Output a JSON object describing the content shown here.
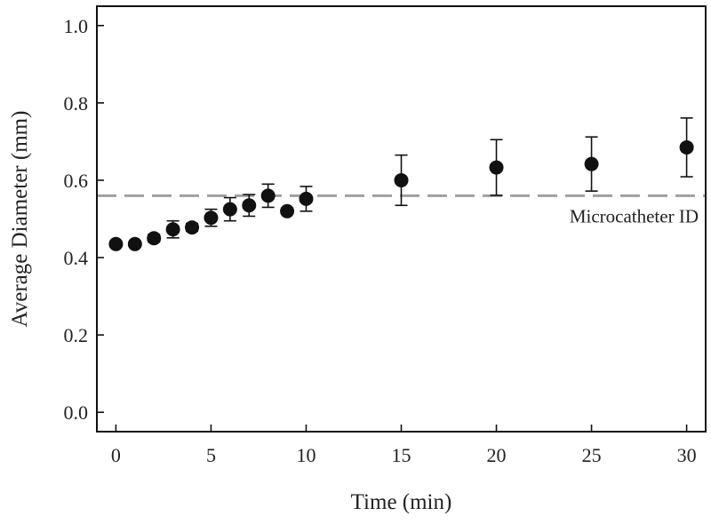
{
  "chart_data": {
    "type": "scatter",
    "title": "",
    "xlabel": "Time (min)",
    "ylabel": "Average Diameter (mm)",
    "xlim": [
      -1,
      31
    ],
    "ylim": [
      -0.05,
      1.05
    ],
    "xticks": [
      0,
      5,
      10,
      15,
      20,
      25,
      30
    ],
    "yticks": [
      0.0,
      0.2,
      0.4,
      0.6,
      0.8,
      1.0
    ],
    "xtick_labels": [
      "0",
      "5",
      "10",
      "15",
      "20",
      "25",
      "30"
    ],
    "ytick_labels": [
      "0.0",
      "0.2",
      "0.4",
      "0.6",
      "0.8",
      "1.0"
    ],
    "grid": false,
    "series": [
      {
        "x": [
          0,
          1,
          2,
          3,
          4,
          5,
          6,
          7,
          8,
          9,
          10,
          15,
          20,
          25,
          30
        ],
        "y": [
          0.435,
          0.435,
          0.45,
          0.473,
          0.478,
          0.503,
          0.525,
          0.535,
          0.56,
          0.52,
          0.552,
          0.6,
          0.633,
          0.642,
          0.685
        ],
        "error": [
          0.008,
          0.006,
          0.01,
          0.022,
          0.01,
          0.022,
          0.03,
          0.028,
          0.03,
          0.008,
          0.032,
          0.065,
          0.072,
          0.07,
          0.076
        ],
        "color": "#111111"
      }
    ],
    "reference_line": {
      "y": 0.56,
      "label": "Microcatheter ID",
      "color": "#a0a0a0",
      "style": "dashed"
    }
  }
}
